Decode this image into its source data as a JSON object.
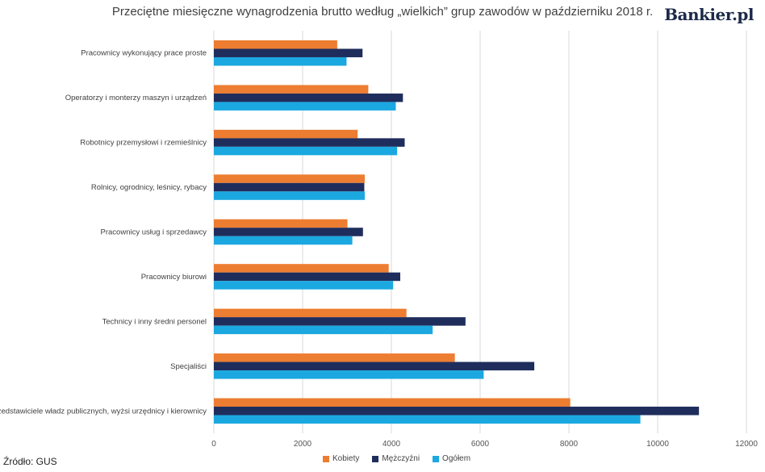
{
  "header": {
    "title": "Przeciętne miesięczne wynagrodzenia brutto według „wielkich” grup zawodów w październiku 2018 r.",
    "brand": "Bankier.pl"
  },
  "footer": {
    "source": "Źródło: GUS"
  },
  "colors": {
    "kobiety": "#ed7d31",
    "mezczyzni": "#1f2d5c",
    "ogolem": "#1ba8e0",
    "grid": "#d9d9d9"
  },
  "chart_data": {
    "type": "bar",
    "orientation": "horizontal",
    "title": "Przeciętne miesięczne wynagrodzenia brutto według „wielkich” grup zawodów w październiku 2018 r.",
    "categories": [
      "Pracownicy wykonujący prace proste",
      "Operatorzy i monterzy maszyn i urządzeń",
      "Robotnicy przemysłowi i rzemieślnicy",
      "Rolnicy, ogrodnicy, leśnicy, rybacy",
      "Pracownicy usług i sprzedawcy",
      "Pracownicy biurowi",
      "Technicy i inny średni personel",
      "Specjaliści",
      "Przedstawiciele władz publicznych, wyżsi urzędnicy i kierownicy"
    ],
    "series": [
      {
        "name": "Kobiety",
        "values": [
          2780,
          3480,
          3240,
          3400,
          3010,
          3940,
          4340,
          5430,
          8030
        ]
      },
      {
        "name": "Mężczyźni",
        "values": [
          3350,
          4260,
          4300,
          3390,
          3360,
          4200,
          5670,
          7220,
          10930
        ]
      },
      {
        "name": "Ogółem",
        "values": [
          2990,
          4100,
          4130,
          3400,
          3120,
          4040,
          4930,
          6080,
          9610
        ]
      }
    ],
    "xlim": [
      0,
      12000
    ],
    "xticks": [
      "0",
      "2000",
      "4000",
      "6000",
      "8000",
      "10000",
      "12000"
    ],
    "grid": true,
    "legend_position": "bottom"
  }
}
